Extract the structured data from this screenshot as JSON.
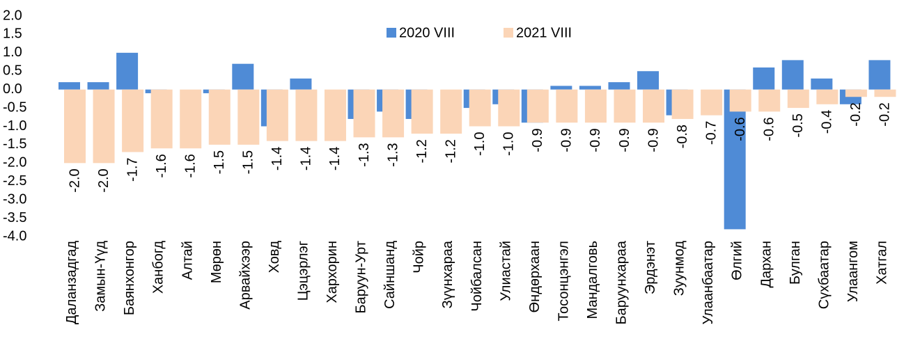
{
  "chart_data": {
    "type": "bar",
    "categories": [
      "Даланзадгад",
      "Замын-Үүд",
      "Баянхонгор",
      "Ханбогд",
      "Алтай",
      "Мөрөн",
      "Арвайхээр",
      "Ховд",
      "Цэцэрлэг",
      "Хархорин",
      "Баруун-Урт",
      "Сайншанд",
      "Чойр",
      "Зүүнхараа",
      "Чойбалсан",
      "Улиастай",
      "Өндөрхаан",
      "Тосонцэнгэл",
      "Мандалговь",
      "Баруунхараа",
      "Эрдэнэт",
      "Зуунмод",
      "Улаанбаатар",
      "Өлгий",
      "Дархан",
      "Булган",
      "Сүхбаатар",
      "Улаангом",
      "Хатгал"
    ],
    "series": [
      {
        "name": "2020 VIII",
        "color": "#4f8bd6",
        "values": [
          0.2,
          0.2,
          1.0,
          -0.1,
          0,
          -0.1,
          0.7,
          -1.0,
          0.3,
          0,
          -0.8,
          -0.6,
          -0.8,
          0,
          -0.5,
          -0.4,
          -0.9,
          0.1,
          0.1,
          0.2,
          0.5,
          -0.7,
          0,
          -3.8,
          0.6,
          0.8,
          0.3,
          -0.4,
          0.8
        ]
      },
      {
        "name": "2021 VIII",
        "color": "#fbd5b7",
        "values": [
          -2.0,
          -2.0,
          -1.7,
          -1.6,
          -1.6,
          -1.5,
          -1.5,
          -1.4,
          -1.4,
          -1.4,
          -1.3,
          -1.3,
          -1.2,
          -1.2,
          -1.0,
          -1.0,
          -0.9,
          -0.9,
          -0.9,
          -0.9,
          -0.9,
          -0.8,
          -0.7,
          -0.6,
          -0.6,
          -0.5,
          -0.4,
          -0.2,
          -0.2
        ],
        "value_labels": [
          "-2.0",
          "-2.0",
          "-1.7",
          "-1.6",
          "-1.6",
          "-1.5",
          "-1.5",
          "-1.4",
          "-1.4",
          "-1.4",
          "-1.3",
          "-1.3",
          "-1.2",
          "-1.2",
          "-1.0",
          "-1.0",
          "-0.9",
          "-0.9",
          "-0.9",
          "-0.9",
          "-0.9",
          "-0.8",
          "-0.7",
          "-0.6",
          "-0.6",
          "-0.5",
          "-0.4",
          "-0.2",
          "-0.2"
        ]
      }
    ],
    "ylim": [
      -4.0,
      2.0
    ],
    "yticks": [
      {
        "value": 2,
        "label": "2.0"
      },
      1.5,
      {
        "value": 1,
        "label": "1.0"
      },
      0.5,
      {
        "value": 0,
        "label": "0.0"
      },
      -0.5,
      {
        "value": -1,
        "label": "-1.0"
      },
      -1.5,
      {
        "value": -2,
        "label": "-2.0"
      },
      -2.5,
      {
        "value": -3,
        "label": "-3.0"
      },
      -3.5,
      {
        "value": -4,
        "label": "-4.0"
      }
    ],
    "legend": "top"
  }
}
